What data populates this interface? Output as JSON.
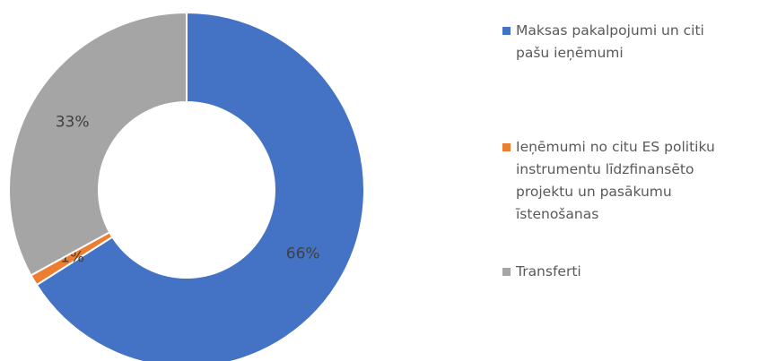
{
  "chart_data": {
    "type": "donut",
    "categories": [
      "Maksas pakalpojumi un citi pašu ieņēmumi",
      "Ieņēmumi no citu ES politiku instrumentu līdzfinansēto projektu un pasākumu īstenošanas",
      "Transferti"
    ],
    "values": [
      66,
      1,
      33
    ],
    "value_labels": [
      "66%",
      "1%",
      "33%"
    ],
    "colors": [
      "#4472c4",
      "#ed7d31",
      "#a5a5a5"
    ],
    "legend": "right"
  }
}
